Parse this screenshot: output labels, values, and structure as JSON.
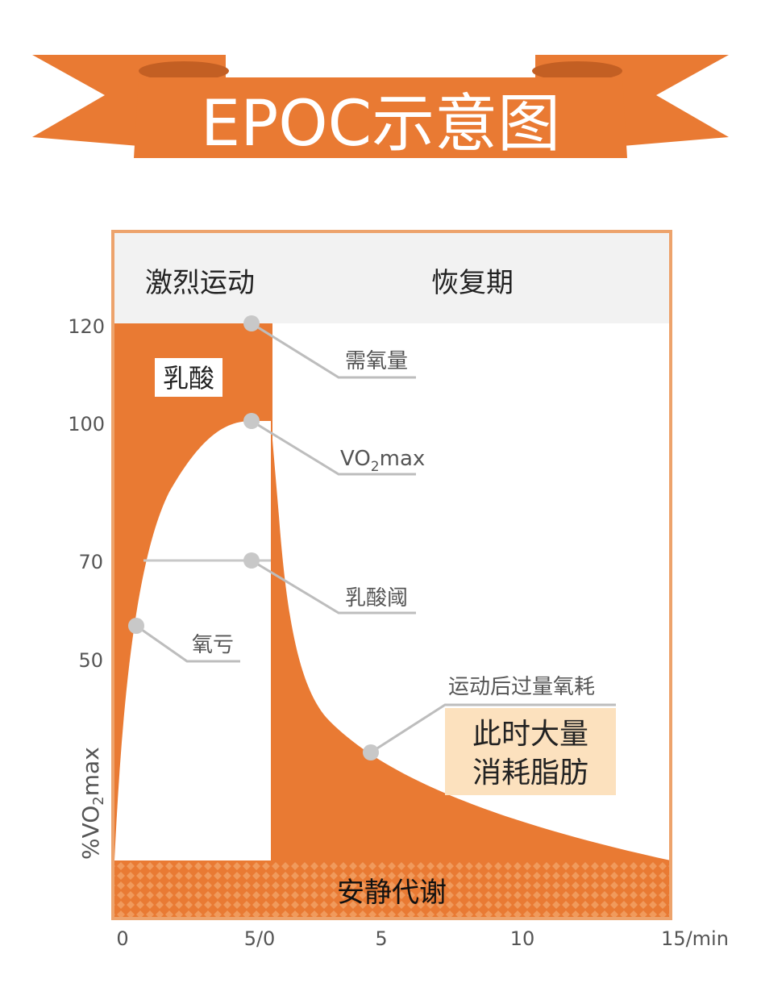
{
  "title": "EPOC示意图",
  "phases": {
    "exercise": "激烈运动",
    "recovery": "恢复期"
  },
  "y_ticks": [
    "120",
    "100",
    "70",
    "50"
  ],
  "y_axis_label": "%VO",
  "y_axis_label_sub": "2",
  "y_axis_label_suffix": "max",
  "x_ticks": [
    "0",
    "5/0",
    "5",
    "10",
    "15/min"
  ],
  "regions": {
    "lactic": "乳酸",
    "resting": "安静代谢"
  },
  "callouts": {
    "oxygen_demand": "需氧量",
    "vo2max_prefix": "VO",
    "vo2max_sub": "2",
    "vo2max_suffix": "max",
    "lactate_threshold": "乳酸阈",
    "oxygen_deficit": "氧亏",
    "epoc": "运动后过量氧耗"
  },
  "note": {
    "line1": "此时大量",
    "line2": "消耗脂肪"
  },
  "colors": {
    "orange": "#E97A33",
    "border": "#EDA36C",
    "header_band": "#F2F2F2",
    "note_bg": "#FCE1BE",
    "dot": "#C8C8C8"
  }
}
